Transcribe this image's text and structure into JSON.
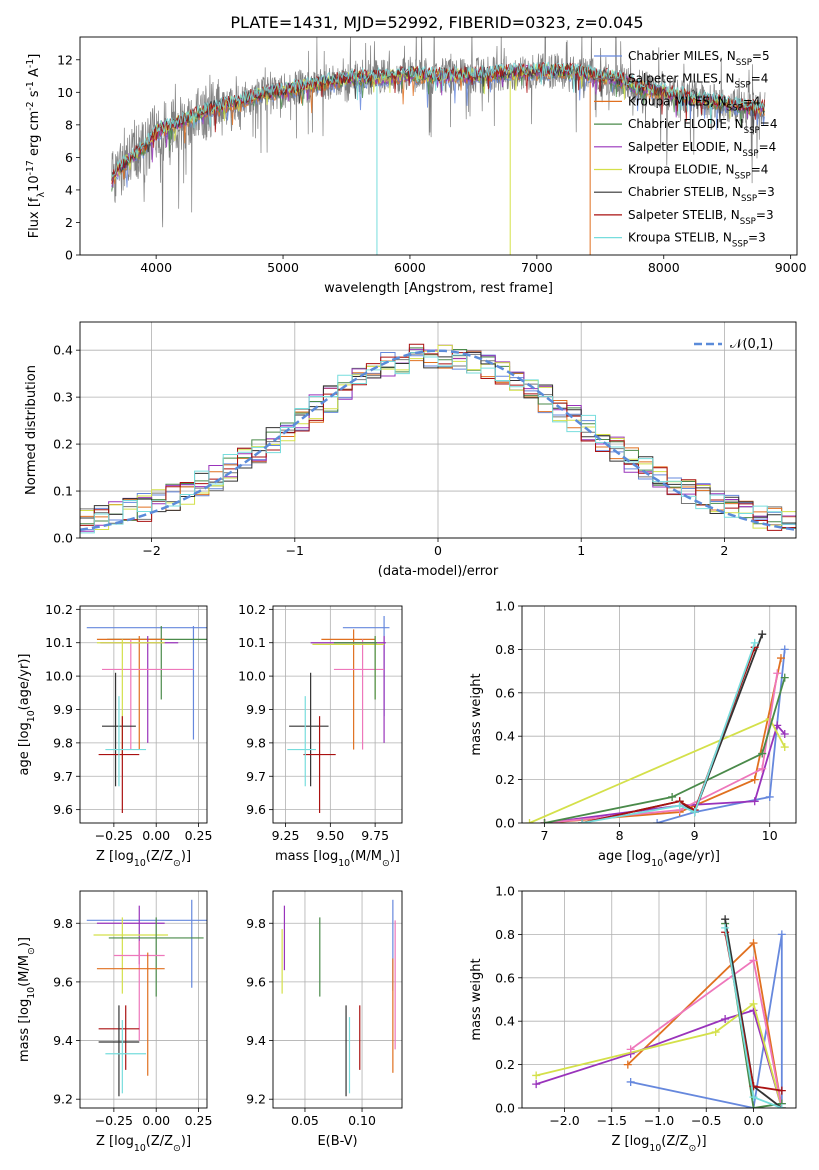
{
  "figure": {
    "title": "PLATE=1431, MJD=52992, FIBERID=0323, z=0.045"
  },
  "legend_spectrum": [
    {
      "label": "Chabrier MILES, N$_{SSP}$=5",
      "color": "#6688dd"
    },
    {
      "label": "Salpeter MILES, N$_{SSP}$=4",
      "color": "#777777"
    },
    {
      "label": "Kroupa MILES, N$_{SSP}$=4",
      "color": "#e07020"
    },
    {
      "label": "Chabrier ELODIE, N$_{SSP}$=4",
      "color": "#4a8a4a"
    },
    {
      "label": "Salpeter ELODIE, N$_{SSP}$=4",
      "color": "#9933bb"
    },
    {
      "label": "Kroupa ELODIE, N$_{SSP}$=4",
      "color": "#d4e04a"
    },
    {
      "label": "Chabrier STELIB, N$_{SSP}$=3",
      "color": "#333333"
    },
    {
      "label": "Salpeter STELIB, N$_{SSP}$=3",
      "color": "#aa1111"
    },
    {
      "label": "Kroupa STELIB, N$_{SSP}$=3",
      "color": "#77dddd"
    }
  ],
  "chart_data": [
    {
      "id": "spectrum",
      "type": "line",
      "xlabel": "wavelength [Angstrom, rest frame]",
      "ylabel": "Flux [f$_\\lambda$10$^{-17}$ erg cm$^{-2}$ s$^{-1}$ A$^{-1}$]",
      "xlim": [
        3400,
        9050
      ],
      "ylim": [
        0,
        13.4
      ],
      "xticks": [
        4000,
        5000,
        6000,
        7000,
        8000,
        9000
      ],
      "yticks": [
        0,
        2,
        4,
        6,
        8,
        10,
        12
      ],
      "data_wavelength_range": [
        3650,
        8800
      ],
      "continuum_x": [
        3650,
        3700,
        3800,
        3900,
        4000,
        4200,
        4400,
        4600,
        4800,
        5000,
        5200,
        5400,
        5600,
        5800,
        6000,
        6200,
        6400,
        6600,
        6800,
        7000,
        7200,
        7400,
        7600,
        7800,
        8000,
        8200,
        8400,
        8600,
        8800
      ],
      "continuum_y": [
        4.5,
        5.2,
        6.0,
        6.5,
        7.6,
        8.2,
        8.9,
        9.3,
        9.8,
        10.1,
        10.4,
        10.7,
        10.9,
        10.9,
        11.1,
        11.0,
        11.0,
        11.1,
        11.2,
        11.3,
        11.3,
        11.1,
        10.9,
        10.3,
        10.0,
        9.7,
        9.4,
        9.1,
        9.0
      ],
      "grid": false,
      "legend_position": "upper right"
    },
    {
      "id": "residuals",
      "type": "histogram",
      "xlabel": "(data-model)/error",
      "ylabel": "Normed distribution",
      "xlim": [
        -2.5,
        2.5
      ],
      "ylim": [
        0,
        0.46
      ],
      "xticks": [
        -2,
        -1,
        0,
        1,
        2
      ],
      "yticks": [
        0.0,
        0.1,
        0.2,
        0.3,
        0.4
      ],
      "grid": true,
      "reference_curve": {
        "label": "$\\mathcal{N}(0,1)$",
        "mean": 0,
        "sigma": 1,
        "color": "#5b8bd9"
      },
      "legend_position": "upper right"
    },
    {
      "id": "Z_vs_age",
      "type": "errorbar",
      "xlabel": "Z [log$_{10}$(Z/Z$_\\odot$)]",
      "ylabel": "age  [log$_{10}$(age/yr)]",
      "xlim": [
        -0.45,
        0.3
      ],
      "ylim": [
        9.56,
        10.21
      ],
      "xticks": [
        -0.25,
        0.0,
        0.25
      ],
      "yticks": [
        9.6,
        9.7,
        9.8,
        9.9,
        10.0,
        10.1,
        10.2
      ],
      "grid": true,
      "points": [
        {
          "x": 0.02,
          "xerr": 0.43,
          "y": 10.145,
          "ylo": 9.81,
          "yhi": 10.15,
          "color": "#6688dd",
          "vx": 0.22
        },
        {
          "x": 0.01,
          "xerr": 0.3,
          "y": 10.11,
          "ylo": 9.93,
          "yhi": 10.15,
          "color": "#4a8a4a",
          "vx": 0.03
        },
        {
          "x": -0.15,
          "xerr": 0.2,
          "y": 10.11,
          "ylo": 9.78,
          "yhi": 10.12,
          "color": "#e07020",
          "vx": -0.1
        },
        {
          "x": -0.1,
          "xerr": 0.23,
          "y": 10.1,
          "ylo": 9.8,
          "yhi": 10.12,
          "color": "#9933bb",
          "vx": -0.05
        },
        {
          "x": -0.05,
          "xerr": 0.27,
          "y": 10.02,
          "ylo": 9.78,
          "yhi": 10.11,
          "color": "#ee77bb",
          "vx": -0.15
        },
        {
          "x": -0.15,
          "xerr": 0.2,
          "y": 10.1,
          "ylo": 9.75,
          "yhi": 10.11,
          "color": "#d4e04a",
          "vx": -0.2
        },
        {
          "x": -0.22,
          "xerr": 0.1,
          "y": 9.85,
          "ylo": 9.67,
          "yhi": 10.01,
          "color": "#333333",
          "vx": -0.24
        },
        {
          "x": -0.22,
          "xerr": 0.12,
          "y": 9.765,
          "ylo": 9.59,
          "yhi": 9.88,
          "color": "#aa1111",
          "vx": -0.2
        },
        {
          "x": -0.18,
          "xerr": 0.12,
          "y": 9.78,
          "ylo": 9.67,
          "yhi": 9.94,
          "color": "#77dddd",
          "vx": -0.22
        }
      ]
    },
    {
      "id": "mass_vs_age",
      "type": "errorbar",
      "xlabel": "mass [log$_{10}$(M/M$_\\odot$)]",
      "ylabel": "",
      "xlim": [
        9.18,
        9.9
      ],
      "ylim": [
        9.56,
        10.21
      ],
      "xticks": [
        9.25,
        9.5,
        9.75
      ],
      "yticks": [
        9.6,
        9.7,
        9.8,
        9.9,
        10.0,
        10.1,
        10.2
      ],
      "grid": true,
      "points": [
        {
          "x": 9.7,
          "xerr": 0.13,
          "y": 10.145,
          "ylo": 9.88,
          "yhi": 10.18,
          "color": "#6688dd",
          "vx": 9.8
        },
        {
          "x": 9.6,
          "xerr": 0.15,
          "y": 10.11,
          "ylo": 9.78,
          "yhi": 10.14,
          "color": "#e07020",
          "vx": 9.63
        },
        {
          "x": 9.6,
          "xerr": 0.21,
          "y": 10.1,
          "ylo": 9.8,
          "yhi": 10.12,
          "color": "#9933bb",
          "vx": 9.8
        },
        {
          "x": 9.66,
          "xerr": 0.14,
          "y": 10.02,
          "ylo": 9.78,
          "yhi": 10.11,
          "color": "#ee77bb",
          "vx": 9.68
        },
        {
          "x": 9.6,
          "xerr": 0.2,
          "y": 10.095,
          "ylo": 9.93,
          "yhi": 10.12,
          "color": "#d4e04a",
          "vx": 9.75
        },
        {
          "x": 9.64,
          "xerr": 0.12,
          "y": 10.1,
          "ylo": 9.93,
          "yhi": 10.12,
          "color": "#4a8a4a",
          "vx": 9.75
        },
        {
          "x": 9.38,
          "xerr": 0.11,
          "y": 9.85,
          "ylo": 9.67,
          "yhi": 10.01,
          "color": "#333333",
          "vx": 9.39
        },
        {
          "x": 9.44,
          "xerr": 0.09,
          "y": 9.765,
          "ylo": 9.59,
          "yhi": 9.88,
          "color": "#aa1111",
          "vx": 9.44
        },
        {
          "x": 9.34,
          "xerr": 0.08,
          "y": 9.78,
          "ylo": 9.67,
          "yhi": 9.94,
          "color": "#77dddd",
          "vx": 9.36
        }
      ]
    },
    {
      "id": "age_vs_massweight",
      "type": "line",
      "xlabel": "age  [log$_{10}$(age/yr)]",
      "ylabel": "mass weight",
      "xlim": [
        6.7,
        10.35
      ],
      "ylim": [
        0,
        1.0
      ],
      "xticks": [
        7,
        8,
        9,
        10
      ],
      "yticks": [
        0.0,
        0.2,
        0.4,
        0.6,
        0.8,
        1.0
      ],
      "grid": true,
      "series": [
        {
          "color": "#6688dd",
          "x": [
            8.5,
            9.0,
            10.0,
            10.2
          ],
          "y": [
            0.0,
            0.05,
            0.12,
            0.8
          ]
        },
        {
          "color": "#e07020",
          "x": [
            7.0,
            8.8,
            9.8,
            10.15
          ],
          "y": [
            0.0,
            0.05,
            0.2,
            0.76
          ]
        },
        {
          "color": "#9933bb",
          "x": [
            7.0,
            8.8,
            9.8,
            10.1,
            10.2
          ],
          "y": [
            0.0,
            0.08,
            0.1,
            0.45,
            0.41
          ]
        },
        {
          "color": "#d4e04a",
          "x": [
            6.8,
            10.0,
            10.2
          ],
          "y": [
            0.0,
            0.48,
            0.35
          ]
        },
        {
          "color": "#ee77bb",
          "x": [
            7.0,
            8.8,
            9.9,
            10.1
          ],
          "y": [
            0.0,
            0.06,
            0.25,
            0.69
          ]
        },
        {
          "color": "#4a8a4a",
          "x": [
            7.0,
            8.7,
            9.9,
            10.2
          ],
          "y": [
            0.0,
            0.12,
            0.32,
            0.67
          ]
        },
        {
          "color": "#333333",
          "x": [
            7.5,
            8.8,
            9.0,
            9.9
          ],
          "y": [
            0.0,
            0.1,
            0.05,
            0.87
          ]
        },
        {
          "color": "#aa1111",
          "x": [
            7.5,
            8.8,
            9.0,
            9.8
          ],
          "y": [
            0.0,
            0.1,
            0.06,
            0.81
          ]
        },
        {
          "color": "#77dddd",
          "x": [
            7.5,
            8.8,
            9.0,
            9.8
          ],
          "y": [
            0.0,
            0.08,
            0.05,
            0.83
          ]
        }
      ]
    },
    {
      "id": "Z_vs_mass",
      "type": "errorbar",
      "xlabel": "Z [log$_{10}$(Z/Z$_\\odot$)]",
      "ylabel": "mass [log$_{10}$(M/M$_\\odot$)]",
      "xlim": [
        -0.45,
        0.3
      ],
      "ylim": [
        9.17,
        9.91
      ],
      "xticks": [
        -0.25,
        0.0,
        0.25
      ],
      "yticks": [
        9.2,
        9.4,
        9.6,
        9.8
      ],
      "grid": true,
      "points": [
        {
          "x": 0.02,
          "xerr": 0.43,
          "y": 9.81,
          "ylo": 9.58,
          "yhi": 9.88,
          "color": "#6688dd",
          "vx": 0.21
        },
        {
          "x": -0.15,
          "xerr": 0.2,
          "y": 9.8,
          "ylo": 9.66,
          "yhi": 9.86,
          "color": "#9933bb",
          "vx": -0.1
        },
        {
          "x": -0.15,
          "xerr": 0.22,
          "y": 9.76,
          "ylo": 9.56,
          "yhi": 9.82,
          "color": "#d4e04a",
          "vx": -0.2
        },
        {
          "x": 0.0,
          "xerr": 0.28,
          "y": 9.75,
          "ylo": 9.55,
          "yhi": 9.82,
          "color": "#4a8a4a",
          "vx": 0.0
        },
        {
          "x": -0.1,
          "xerr": 0.15,
          "y": 9.69,
          "ylo": 9.4,
          "yhi": 9.74,
          "color": "#ee77bb",
          "vx": -0.1
        },
        {
          "x": -0.15,
          "xerr": 0.2,
          "y": 9.645,
          "ylo": 9.28,
          "yhi": 9.7,
          "color": "#e07020",
          "vx": -0.05
        },
        {
          "x": -0.22,
          "xerr": 0.12,
          "y": 9.44,
          "ylo": 9.3,
          "yhi": 9.52,
          "color": "#aa1111",
          "vx": -0.18
        },
        {
          "x": -0.22,
          "xerr": 0.12,
          "y": 9.395,
          "ylo": 9.21,
          "yhi": 9.52,
          "color": "#333333",
          "vx": -0.22
        },
        {
          "x": -0.18,
          "xerr": 0.12,
          "y": 9.355,
          "ylo": 9.22,
          "yhi": 9.47,
          "color": "#77dddd",
          "vx": -0.2
        }
      ]
    },
    {
      "id": "EBV_vs_mass",
      "type": "errorbar",
      "xlabel": "E(B-V)",
      "ylabel": "",
      "xlim": [
        0.022,
        0.135
      ],
      "ylim": [
        9.17,
        9.91
      ],
      "xticks": [
        0.05,
        0.1
      ],
      "yticks": [
        9.2,
        9.4,
        9.6,
        9.8
      ],
      "grid": true,
      "points": [
        {
          "x": 0.127,
          "ylo": 9.57,
          "yhi": 9.88,
          "color": "#6688dd"
        },
        {
          "x": 0.032,
          "ylo": 9.64,
          "yhi": 9.86,
          "color": "#9933bb"
        },
        {
          "x": 0.03,
          "ylo": 9.56,
          "yhi": 9.78,
          "color": "#d4e04a"
        },
        {
          "x": 0.063,
          "ylo": 9.55,
          "yhi": 9.82,
          "color": "#4a8a4a"
        },
        {
          "x": 0.129,
          "ylo": 9.37,
          "yhi": 9.81,
          "color": "#ee77bb"
        },
        {
          "x": 0.127,
          "ylo": 9.29,
          "yhi": 9.68,
          "color": "#e07020"
        },
        {
          "x": 0.098,
          "ylo": 9.3,
          "yhi": 9.52,
          "color": "#aa1111"
        },
        {
          "x": 0.086,
          "ylo": 9.21,
          "yhi": 9.52,
          "color": "#333333"
        },
        {
          "x": 0.089,
          "ylo": 9.22,
          "yhi": 9.48,
          "color": "#77dddd"
        }
      ]
    },
    {
      "id": "Z_vs_massweight",
      "type": "line",
      "xlabel": "Z [log$_{10}$(Z/Z$_\\odot$)]",
      "ylabel": "mass weight",
      "xlim": [
        -2.45,
        0.45
      ],
      "ylim": [
        0,
        1.0
      ],
      "xticks": [
        -2.0,
        -1.5,
        -1.0,
        -0.5,
        0.0
      ],
      "yticks": [
        0.0,
        0.2,
        0.4,
        0.6,
        0.8,
        1.0
      ],
      "grid": true,
      "series": [
        {
          "color": "#6688dd",
          "x": [
            -1.3,
            0.0,
            0.3,
            0.3
          ],
          "y": [
            0.12,
            0.0,
            0.8,
            0.02
          ]
        },
        {
          "color": "#e07020",
          "x": [
            -1.33,
            0.0,
            0.3
          ],
          "y": [
            0.2,
            0.76,
            0.0
          ]
        },
        {
          "color": "#9933bb",
          "x": [
            -2.3,
            -1.3,
            -0.3,
            0.0,
            0.3
          ],
          "y": [
            0.11,
            0.25,
            0.41,
            0.45,
            0.0
          ]
        },
        {
          "color": "#d4e04a",
          "x": [
            -2.3,
            -0.4,
            0.0,
            0.3
          ],
          "y": [
            0.15,
            0.35,
            0.48,
            0.0
          ]
        },
        {
          "color": "#ee77bb",
          "x": [
            -1.3,
            0.0,
            0.3
          ],
          "y": [
            0.27,
            0.68,
            0.0
          ]
        },
        {
          "color": "#4a8a4a",
          "x": [
            -0.3,
            0.0,
            0.3
          ],
          "y": [
            0.85,
            0.0,
            0.02
          ]
        },
        {
          "color": "#333333",
          "x": [
            -0.3,
            0.0,
            0.3
          ],
          "y": [
            0.87,
            0.1,
            0.0
          ]
        },
        {
          "color": "#aa1111",
          "x": [
            -0.3,
            0.0,
            0.3
          ],
          "y": [
            0.81,
            0.1,
            0.08
          ]
        },
        {
          "color": "#77dddd",
          "x": [
            -0.3,
            0.0,
            0.3
          ],
          "y": [
            0.83,
            0.05,
            0.0
          ]
        }
      ]
    }
  ]
}
